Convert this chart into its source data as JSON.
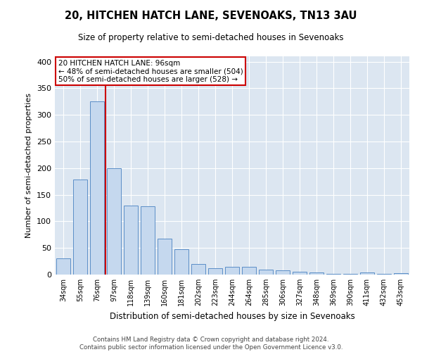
{
  "title": "20, HITCHEN HATCH LANE, SEVENOAKS, TN13 3AU",
  "subtitle": "Size of property relative to semi-detached houses in Sevenoaks",
  "xlabel": "Distribution of semi-detached houses by size in Sevenoaks",
  "ylabel": "Number of semi-detached properties",
  "categories": [
    "34sqm",
    "55sqm",
    "76sqm",
    "97sqm",
    "118sqm",
    "139sqm",
    "160sqm",
    "181sqm",
    "202sqm",
    "223sqm",
    "244sqm",
    "264sqm",
    "285sqm",
    "306sqm",
    "327sqm",
    "348sqm",
    "369sqm",
    "390sqm",
    "411sqm",
    "432sqm",
    "453sqm"
  ],
  "values": [
    31,
    178,
    325,
    200,
    130,
    128,
    67,
    47,
    20,
    12,
    15,
    15,
    9,
    8,
    5,
    4,
    1,
    1,
    4,
    1,
    3
  ],
  "bar_color": "#c5d8ee",
  "bar_edge_color": "#5b8ec7",
  "background_color": "#dce6f1",
  "annotation_box_text_line1": "20 HITCHEN HATCH LANE: 96sqm",
  "annotation_box_text_line2": "← 48% of semi-detached houses are smaller (504)",
  "annotation_box_text_line3": "50% of semi-detached houses are larger (528) →",
  "annotation_box_color": "white",
  "annotation_box_edge_color": "#cc0000",
  "vline_color": "#cc0000",
  "footer_line1": "Contains HM Land Registry data © Crown copyright and database right 2024.",
  "footer_line2": "Contains public sector information licensed under the Open Government Licence v3.0.",
  "ylim": [
    0,
    410
  ],
  "yticks": [
    0,
    50,
    100,
    150,
    200,
    250,
    300,
    350,
    400
  ]
}
